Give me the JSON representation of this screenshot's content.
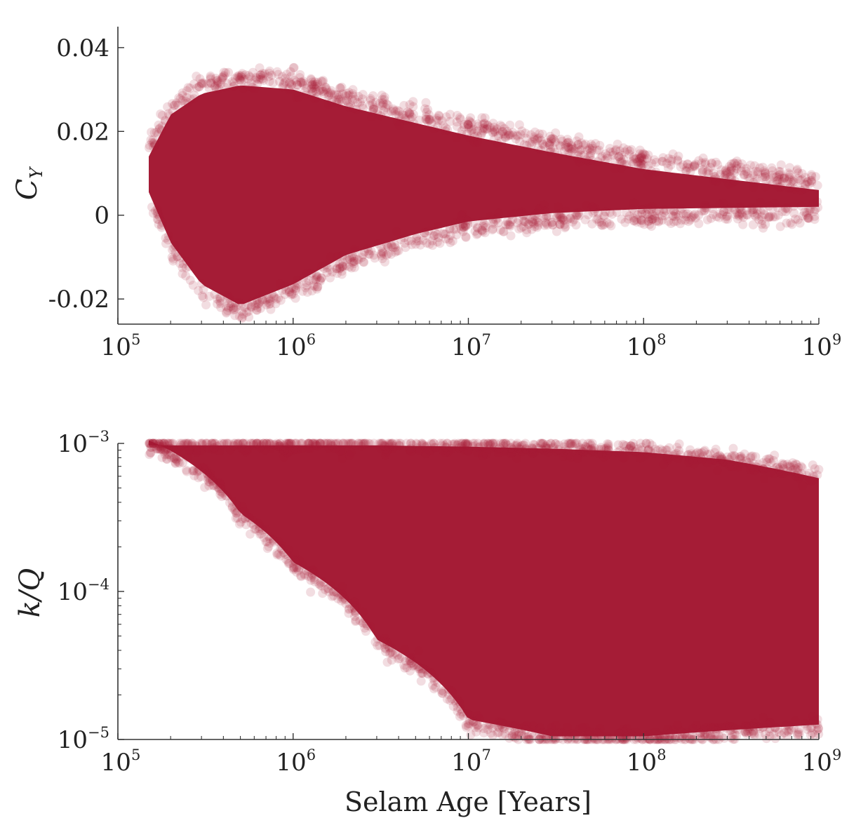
{
  "chart_data": [
    {
      "type": "scatter",
      "xlabel": "",
      "ylabel": "C_Y",
      "xscale": "log",
      "xlim": [
        100000,
        1000000000
      ],
      "ylim": [
        -0.026,
        0.045
      ],
      "xticks": [
        {
          "base": "10",
          "exp": "5"
        },
        {
          "base": "10",
          "exp": "6"
        },
        {
          "base": "10",
          "exp": "7"
        },
        {
          "base": "10",
          "exp": "8"
        },
        {
          "base": "10",
          "exp": "9"
        }
      ],
      "yticks": [
        {
          "value": -0.02,
          "label": "-0.02"
        },
        {
          "value": 0,
          "label": "0"
        },
        {
          "value": 0.02,
          "label": "0.02"
        },
        {
          "value": 0.04,
          "label": "0.04"
        }
      ],
      "grid": false,
      "legend": "none",
      "series_color": "#a51c36",
      "point_alpha": 0.15,
      "envelope": {
        "x": [
          150000,
          200000,
          300000,
          500000,
          1000000,
          2000000,
          5000000,
          10000000,
          30000000,
          100000000,
          1000000000
        ],
        "upper": [
          0.016,
          0.026,
          0.031,
          0.033,
          0.032,
          0.028,
          0.024,
          0.021,
          0.017,
          0.013,
          0.008
        ],
        "lower": [
          0.004,
          -0.008,
          -0.018,
          -0.023,
          -0.018,
          -0.011,
          -0.006,
          -0.003,
          -0.001,
          0.0,
          0.0005
        ]
      }
    },
    {
      "type": "scatter",
      "xlabel": "Selam Age [Years]",
      "ylabel": "k/Q",
      "xscale": "log",
      "yscale": "log",
      "xlim": [
        100000,
        1000000000
      ],
      "ylim": [
        1e-05,
        0.001
      ],
      "xticks": [
        {
          "base": "10",
          "exp": "5"
        },
        {
          "base": "10",
          "exp": "6"
        },
        {
          "base": "10",
          "exp": "7"
        },
        {
          "base": "10",
          "exp": "8"
        },
        {
          "base": "10",
          "exp": "9"
        }
      ],
      "yticks": [
        {
          "value": 1e-05,
          "base": "10",
          "exp": "−5"
        },
        {
          "value": 0.0001,
          "base": "10",
          "exp": "−4"
        },
        {
          "value": 0.001,
          "base": "10",
          "exp": "−3"
        }
      ],
      "grid": false,
      "legend": "none",
      "series_color": "#a51c36",
      "point_alpha": 0.15,
      "envelope": {
        "x": [
          150000,
          200000,
          500000,
          1000000,
          3000000,
          10000000,
          30000000,
          100000000,
          300000000,
          1000000000
        ],
        "upper": [
          0.001,
          0.001,
          0.001,
          0.001,
          0.001,
          0.00098,
          0.00095,
          0.0009,
          0.0008,
          0.0006
        ],
        "lower": [
          0.001,
          0.00085,
          0.00032,
          0.00015,
          4.5e-05,
          1.3e-05,
          1e-05,
          1e-05,
          1.1e-05,
          1.2e-05
        ]
      }
    }
  ]
}
